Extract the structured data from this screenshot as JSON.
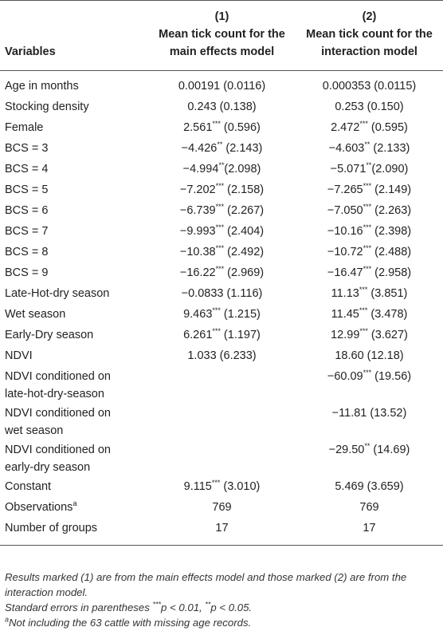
{
  "header": {
    "variables": "Variables",
    "col1_num": "(1)",
    "col1_title": "Mean tick count for the main effects model",
    "col2_num": "(2)",
    "col2_title": "Mean tick count for the interaction model"
  },
  "rows": [
    {
      "label": "Age in months",
      "v1": "0.00191 (0.0116)",
      "v2": "0.000353 (0.0115)"
    },
    {
      "label": "Stocking density",
      "v1": "0.243 (0.138)",
      "v2": "0.253 (0.150)"
    },
    {
      "label": "Female",
      "v1": "2.561*** (0.596)",
      "v2": "2.472*** (0.595)"
    },
    {
      "label": "BCS = 3",
      "v1": "−4.426** (2.143)",
      "v2": "−4.603** (2.133)"
    },
    {
      "label": "BCS = 4",
      "v1": "−4.994**(2.098)",
      "v2": "−5.071**(2.090)"
    },
    {
      "label": "BCS = 5",
      "v1": "−7.202*** (2.158)",
      "v2": "−7.265*** (2.149)"
    },
    {
      "label": "BCS = 6",
      "v1": "−6.739*** (2.267)",
      "v2": "−7.050*** (2.263)"
    },
    {
      "label": "BCS = 7",
      "v1": "−9.993*** (2.404)",
      "v2": "−10.16*** (2.398)"
    },
    {
      "label": "BCS = 8",
      "v1": "−10.38*** (2.492)",
      "v2": "−10.72*** (2.488)"
    },
    {
      "label": "BCS = 9",
      "v1": "−16.22*** (2.969)",
      "v2": "−16.47*** (2.958)"
    },
    {
      "label": "Late-Hot-dry season",
      "v1": "−0.0833 (1.116)",
      "v2": "11.13*** (3.851)"
    },
    {
      "label": "Wet season",
      "v1": "9.463*** (1.215)",
      "v2": "11.45*** (3.478)"
    },
    {
      "label": "Early-Dry season",
      "v1": "6.261*** (1.197)",
      "v2": "12.99*** (3.627)"
    },
    {
      "label": "NDVI",
      "v1": "1.033 (6.233)",
      "v2": "18.60 (12.18)"
    },
    {
      "label": "NDVI conditioned on late-hot-dry-season",
      "v1": "",
      "v2": "−60.09*** (19.56)"
    },
    {
      "label": "NDVI conditioned on wet season",
      "v1": "",
      "v2": "−11.81 (13.52)"
    },
    {
      "label": "NDVI conditioned on early-dry season",
      "v1": "",
      "v2": "−29.50** (14.69)"
    },
    {
      "label": "Constant",
      "v1": "9.115*** (3.010)",
      "v2": "5.469 (3.659)"
    },
    {
      "label": "Observations",
      "label_sup": "a",
      "v1": "769",
      "v2": "769"
    },
    {
      "label": "Number of groups",
      "v1": "17",
      "v2": "17"
    }
  ],
  "notes": {
    "line1": "Results marked (1) are from the main effects model and those marked (2) are from the interaction model.",
    "line2": "Standard errors in parentheses ***p < 0.01, **p < 0.05.",
    "line3_sup": "a",
    "line3": "Not including the 63 cattle with missing age records."
  }
}
